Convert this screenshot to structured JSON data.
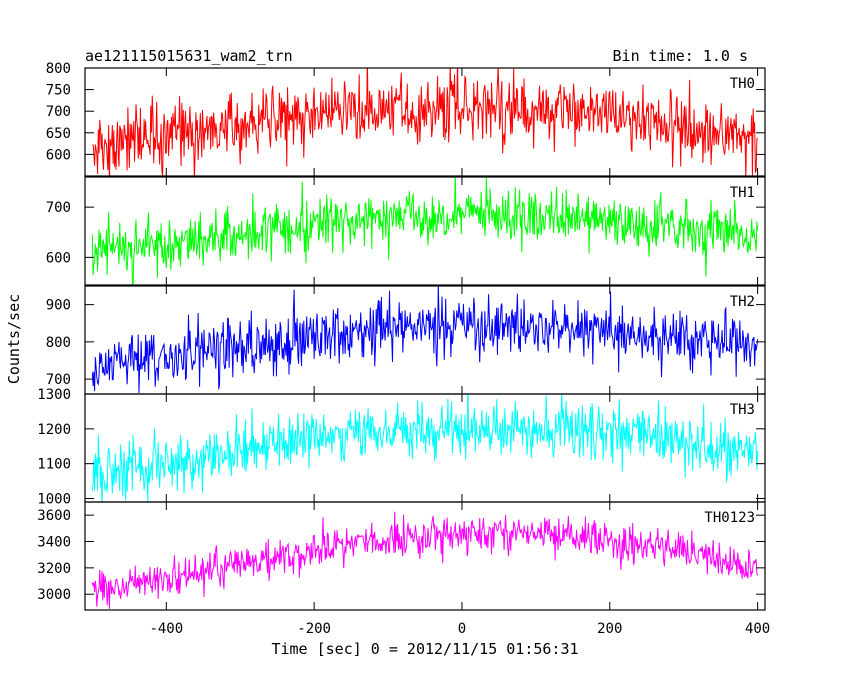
{
  "title_left": "ae121115015631_wam2_trn",
  "title_right": "Bin time: 1.0 s",
  "xlabel": "Time [sec] 0 = 2012/11/15 01:56:31",
  "ylabel": "Counts/sec",
  "chart_data": [
    {
      "type": "line",
      "series_label": "TH0",
      "color": "#ff0000",
      "xlim": [
        -510,
        410
      ],
      "ylim": [
        550,
        800
      ],
      "yticks": [
        600,
        650,
        700,
        750,
        800
      ],
      "bin_time_s": 1.0,
      "x_range": [
        -500,
        400
      ],
      "trend": [
        [
          -500,
          625
        ],
        [
          -400,
          645
        ],
        [
          -300,
          670
        ],
        [
          -200,
          692
        ],
        [
          -100,
          705
        ],
        [
          0,
          710
        ],
        [
          100,
          705
        ],
        [
          200,
          690
        ],
        [
          300,
          665
        ],
        [
          400,
          630
        ]
      ],
      "noise_sd": 38
    },
    {
      "type": "line",
      "series_label": "TH1",
      "color": "#00ff00",
      "xlim": [
        -510,
        410
      ],
      "ylim": [
        545,
        760
      ],
      "yticks": [
        600,
        700
      ],
      "bin_time_s": 1.0,
      "x_range": [
        -500,
        400
      ],
      "trend": [
        [
          -500,
          610
        ],
        [
          -400,
          625
        ],
        [
          -300,
          648
        ],
        [
          -200,
          665
        ],
        [
          -100,
          678
        ],
        [
          0,
          683
        ],
        [
          100,
          682
        ],
        [
          200,
          672
        ],
        [
          300,
          657
        ],
        [
          400,
          640
        ]
      ],
      "noise_sd": 26
    },
    {
      "type": "line",
      "series_label": "TH2",
      "color": "#0000ff",
      "xlim": [
        -510,
        410
      ],
      "ylim": [
        660,
        950
      ],
      "yticks": [
        700,
        800,
        900
      ],
      "bin_time_s": 1.0,
      "x_range": [
        -500,
        400
      ],
      "trend": [
        [
          -500,
          735
        ],
        [
          -400,
          755
        ],
        [
          -300,
          785
        ],
        [
          -200,
          815
        ],
        [
          -100,
          835
        ],
        [
          0,
          845
        ],
        [
          100,
          842
        ],
        [
          200,
          830
        ],
        [
          300,
          808
        ],
        [
          400,
          785
        ]
      ],
      "noise_sd": 38
    },
    {
      "type": "line",
      "series_label": "TH3",
      "color": "#00ffff",
      "xlim": [
        -510,
        410
      ],
      "ylim": [
        990,
        1300
      ],
      "yticks": [
        1000,
        1100,
        1200,
        1300
      ],
      "bin_time_s": 1.0,
      "x_range": [
        -500,
        400
      ],
      "trend": [
        [
          -500,
          1060
        ],
        [
          -400,
          1095
        ],
        [
          -300,
          1140
        ],
        [
          -200,
          1175
        ],
        [
          -100,
          1195
        ],
        [
          0,
          1205
        ],
        [
          100,
          1205
        ],
        [
          200,
          1190
        ],
        [
          300,
          1165
        ],
        [
          400,
          1130
        ]
      ],
      "noise_sd": 40
    },
    {
      "type": "line",
      "series_label": "TH0123",
      "color": "#ff00ff",
      "xlim": [
        -510,
        410
      ],
      "ylim": [
        2880,
        3700
      ],
      "yticks": [
        3000,
        3200,
        3400,
        3600
      ],
      "bin_time_s": 1.0,
      "x_range": [
        -500,
        400
      ],
      "trend": [
        [
          -500,
          3040
        ],
        [
          -400,
          3110
        ],
        [
          -300,
          3230
        ],
        [
          -200,
          3340
        ],
        [
          -100,
          3420
        ],
        [
          0,
          3460
        ],
        [
          100,
          3455
        ],
        [
          200,
          3410
        ],
        [
          300,
          3320
        ],
        [
          400,
          3180
        ]
      ],
      "noise_sd": 70
    }
  ],
  "xticks": [
    -400,
    -200,
    0,
    200,
    400
  ]
}
